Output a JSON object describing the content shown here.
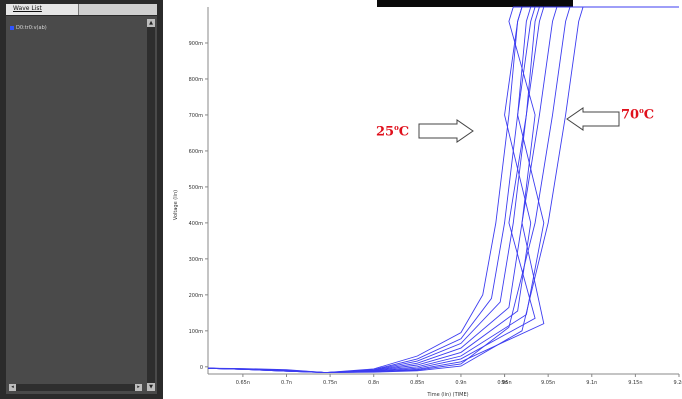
{
  "wave_list": {
    "tab_label": "Wave List",
    "items": [
      {
        "label": "D0:tr0:v(ab)",
        "color": "#2f54ff"
      }
    ]
  },
  "scrollbar_glyphs": {
    "up": "▲",
    "down": "▼",
    "left": "◂",
    "right": "▸"
  },
  "annotations": {
    "low_temp_prefix": "25",
    "low_temp_degree": "o",
    "low_temp_unit": "C",
    "high_temp_prefix": "70",
    "high_temp_degree": "o",
    "high_temp_unit": "C",
    "label_color": "#e0101c"
  },
  "chart_data": {
    "type": "line",
    "xlabel": "Time (lin) (TIME)",
    "ylabel": "Voltage (lin)",
    "xlim": [
      0.61,
      9.2
    ],
    "ylim": [
      -20,
      1000
    ],
    "x_ticks": [
      0.65,
      0.7,
      0.75,
      0.8,
      0.85,
      0.9,
      0.95,
      9,
      9.05,
      9.1,
      9.15,
      9.2
    ],
    "x_tick_labels": [
      "0.65n",
      "0.7n",
      "0.75n",
      "0.8n",
      "0.85n",
      "0.9n",
      "0.95n",
      "9n",
      "9.05n",
      "9.1n",
      "9.15n",
      "9.2n"
    ],
    "y_ticks": [
      0,
      100,
      200,
      300,
      400,
      500,
      600,
      700,
      800,
      900
    ],
    "y_tick_labels": [
      "0",
      "100m",
      "200m",
      "300m",
      "400m",
      "500m",
      "600m",
      "700m",
      "800m",
      "900m"
    ],
    "series_color": "#3d3df0",
    "series": [
      {
        "values": [
          [
            0.61,
            -4
          ],
          [
            0.65,
            -5
          ],
          [
            0.7,
            -8
          ],
          [
            0.745,
            -16
          ],
          [
            0.8,
            -6
          ],
          [
            0.85,
            30
          ],
          [
            0.9,
            95
          ],
          [
            0.925,
            200
          ],
          [
            0.94,
            400
          ],
          [
            0.955,
            700
          ],
          [
            0.965,
            960
          ],
          [
            0.97,
            1000
          ],
          [
            9.2,
            1000
          ]
        ]
      },
      {
        "values": [
          [
            0.61,
            -4
          ],
          [
            0.65,
            -6
          ],
          [
            0.7,
            -9
          ],
          [
            0.745,
            -16
          ],
          [
            0.8,
            -8
          ],
          [
            0.85,
            22
          ],
          [
            0.9,
            78
          ],
          [
            0.935,
            190
          ],
          [
            0.95,
            400
          ],
          [
            0.965,
            700
          ],
          [
            0.975,
            960
          ],
          [
            0.98,
            1000
          ],
          [
            9.2,
            1000
          ]
        ]
      },
      {
        "values": [
          [
            0.61,
            -4
          ],
          [
            0.65,
            -6
          ],
          [
            0.7,
            -10
          ],
          [
            0.745,
            -16
          ],
          [
            0.8,
            -9
          ],
          [
            0.85,
            16
          ],
          [
            0.9,
            65
          ],
          [
            0.945,
            180
          ],
          [
            0.96,
            400
          ],
          [
            0.975,
            700
          ],
          [
            0.985,
            960
          ],
          [
            0.99,
            1000
          ],
          [
            9.2,
            1000
          ]
        ]
      },
      {
        "values": [
          [
            0.61,
            -4
          ],
          [
            0.65,
            -6
          ],
          [
            0.7,
            -10
          ],
          [
            0.745,
            -16
          ],
          [
            0.8,
            -10
          ],
          [
            0.85,
            10
          ],
          [
            0.9,
            52
          ],
          [
            0.955,
            165
          ],
          [
            0.97,
            400
          ],
          [
            0.985,
            700
          ],
          [
            9.005,
            960
          ],
          [
            9.01,
            1000
          ],
          [
            9.2,
            1000
          ]
        ]
      },
      {
        "values": [
          [
            0.61,
            -4
          ],
          [
            0.65,
            -7
          ],
          [
            0.7,
            -11
          ],
          [
            0.745,
            -16
          ],
          [
            0.8,
            -11
          ],
          [
            0.85,
            5
          ],
          [
            0.9,
            40
          ],
          [
            0.965,
            155
          ],
          [
            0.98,
            400
          ],
          [
            9.0,
            700
          ],
          [
            9.015,
            960
          ],
          [
            9.02,
            1000
          ],
          [
            9.2,
            1000
          ]
        ]
      },
      {
        "values": [
          [
            0.61,
            -4
          ],
          [
            0.65,
            -7
          ],
          [
            0.7,
            -11
          ],
          [
            0.745,
            -16
          ],
          [
            0.8,
            -12
          ],
          [
            0.85,
            0
          ],
          [
            0.9,
            30
          ],
          [
            0.975,
            145
          ],
          [
            0.995,
            400
          ],
          [
            9.015,
            700
          ],
          [
            9.03,
            960
          ],
          [
            9.035,
            1000
          ],
          [
            9.2,
            1000
          ]
        ]
      },
      {
        "values": [
          [
            0.61,
            -4
          ],
          [
            0.65,
            -7
          ],
          [
            0.7,
            -12
          ],
          [
            0.745,
            -16
          ],
          [
            0.8,
            -13
          ],
          [
            0.85,
            -4
          ],
          [
            0.9,
            22
          ],
          [
            0.985,
            135
          ],
          [
            9.005,
            400
          ],
          [
            9.025,
            700
          ],
          [
            9.04,
            960
          ],
          [
            9.045,
            1000
          ],
          [
            9.2,
            1000
          ]
        ]
      },
      {
        "values": [
          [
            0.61,
            -4
          ],
          [
            0.65,
            -7
          ],
          [
            0.7,
            -12
          ],
          [
            0.745,
            -16
          ],
          [
            0.8,
            -14
          ],
          [
            0.85,
            -7
          ],
          [
            0.9,
            14
          ],
          [
            0.995,
            120
          ],
          [
            9.02,
            400
          ],
          [
            9.04,
            700
          ],
          [
            9.055,
            960
          ],
          [
            9.06,
            1000
          ],
          [
            9.2,
            1000
          ]
        ]
      },
      {
        "values": [
          [
            0.61,
            -4
          ],
          [
            0.65,
            -7
          ],
          [
            0.7,
            -12
          ],
          [
            0.745,
            -16
          ],
          [
            0.8,
            -14
          ],
          [
            0.85,
            -9
          ],
          [
            0.9,
            8
          ],
          [
            9.005,
            110
          ],
          [
            9.035,
            400
          ],
          [
            9.055,
            700
          ],
          [
            9.07,
            960
          ],
          [
            9.075,
            1000
          ],
          [
            9.2,
            1000
          ]
        ]
      },
      {
        "values": [
          [
            0.61,
            -4
          ],
          [
            0.65,
            -7
          ],
          [
            0.7,
            -12
          ],
          [
            0.745,
            -16
          ],
          [
            0.8,
            -15
          ],
          [
            0.85,
            -11
          ],
          [
            0.9,
            2
          ],
          [
            9.02,
            100
          ],
          [
            9.05,
            400
          ],
          [
            9.07,
            700
          ],
          [
            9.085,
            960
          ],
          [
            9.09,
            1000
          ],
          [
            9.2,
            1000
          ]
        ]
      }
    ]
  }
}
